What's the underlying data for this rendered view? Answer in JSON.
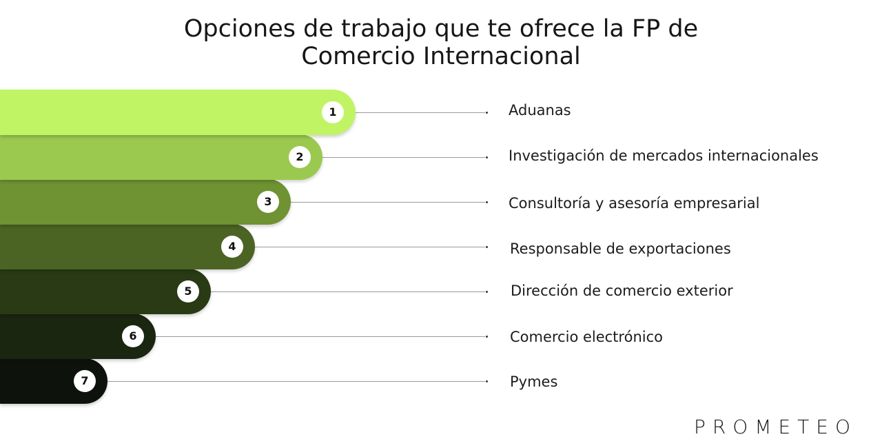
{
  "title": {
    "line1": "Opciones de trabajo que te ofrece la FP de",
    "line2": "Comercio Internacional"
  },
  "options": [
    {
      "number": "1",
      "label": "Aduanas",
      "color": "#c0f464"
    },
    {
      "number": "2",
      "label": "Investigación de mercados internacionales",
      "color": "#9bc94f"
    },
    {
      "number": "3",
      "label": "Consultoría y asesoría empresarial",
      "color": "#6f9233"
    },
    {
      "number": "4",
      "label": "Responsable de exportaciones",
      "color": "#4b6424"
    },
    {
      "number": "5",
      "label": "Dirección de comercio exterior",
      "color": "#293a15"
    },
    {
      "number": "6",
      "label": "Comercio electrónico",
      "color": "#1b2611"
    },
    {
      "number": "7",
      "label": "Pymes",
      "color": "#0e120c"
    }
  ],
  "brand": "PROMETEO"
}
